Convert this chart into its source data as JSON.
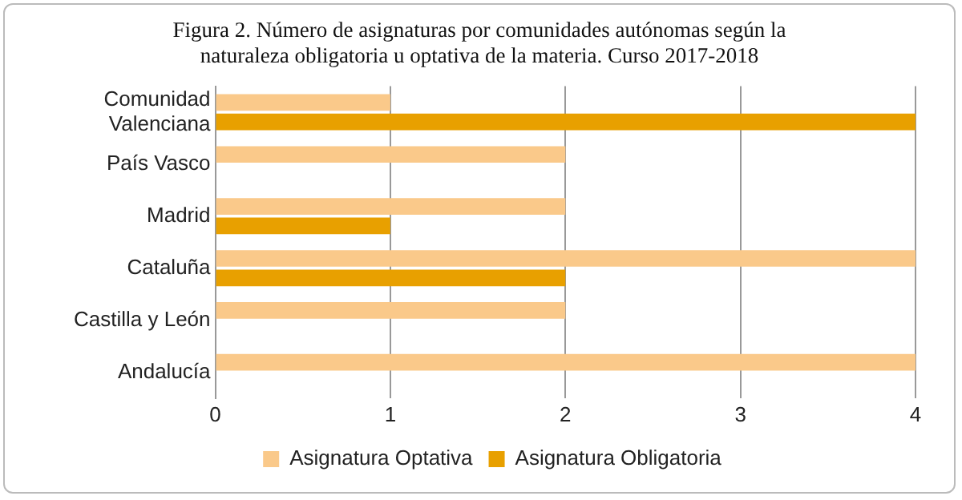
{
  "chart_data": {
    "type": "bar",
    "orientation": "horizontal",
    "title": "Figura 2. Número de asignaturas por comunidades autónomas según la naturaleza obligatoria u optativa de la materia. Curso 2017-2018",
    "categories": [
      "Comunidad Valenciana",
      "País Vasco",
      "Madrid",
      "Cataluña",
      "Castilla y León",
      "Andalucía"
    ],
    "series": [
      {
        "name": "Asignatura Optativa",
        "color": "#fac98a",
        "values": [
          1,
          2,
          2,
          4,
          2,
          4
        ]
      },
      {
        "name": "Asignatura Obligatoria",
        "color": "#e8a000",
        "values": [
          4,
          null,
          1,
          2,
          null,
          null
        ]
      }
    ],
    "xlim": [
      0,
      4
    ],
    "xticks": [
      0,
      1,
      2,
      3,
      4
    ],
    "grid": "x",
    "legend": "bottom"
  }
}
